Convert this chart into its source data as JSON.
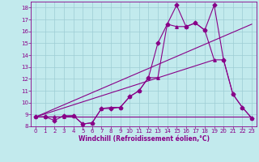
{
  "xlabel": "Windchill (Refroidissement éolien,°C)",
  "xlim": [
    -0.5,
    23.5
  ],
  "ylim": [
    8,
    18.5
  ],
  "xticks": [
    0,
    1,
    2,
    3,
    4,
    5,
    6,
    7,
    8,
    9,
    10,
    11,
    12,
    13,
    14,
    15,
    16,
    17,
    18,
    19,
    20,
    21,
    22,
    23
  ],
  "yticks": [
    8,
    9,
    10,
    11,
    12,
    13,
    14,
    15,
    16,
    17,
    18
  ],
  "background_color": "#c2eaed",
  "grid_color": "#9dcdd4",
  "line_color": "#880088",
  "line1_x": [
    0,
    1,
    2,
    3,
    4,
    5,
    6,
    7,
    8,
    9,
    10,
    11,
    12,
    13,
    14,
    15,
    16,
    17,
    18,
    19,
    20,
    21,
    22,
    23
  ],
  "line1_y": [
    8.8,
    8.8,
    8.5,
    8.9,
    8.9,
    8.2,
    8.3,
    9.5,
    9.5,
    9.6,
    10.5,
    11.0,
    12.1,
    15.0,
    16.6,
    18.2,
    16.4,
    16.7,
    16.1,
    18.2,
    13.6,
    10.7,
    9.6,
    8.7
  ],
  "line2_x": [
    0,
    23
  ],
  "line2_y": [
    8.8,
    8.8
  ],
  "line3_x": [
    0,
    1,
    2,
    3,
    4,
    5,
    6,
    7,
    8,
    9,
    10,
    11,
    12,
    13,
    14,
    15,
    16,
    17,
    18,
    19,
    20,
    21,
    22,
    23
  ],
  "line3_y": [
    8.8,
    8.8,
    8.8,
    8.8,
    8.9,
    8.2,
    8.3,
    9.5,
    9.6,
    9.6,
    10.5,
    11.0,
    12.1,
    12.1,
    16.6,
    16.4,
    16.4,
    16.7,
    16.1,
    13.6,
    13.6,
    10.7,
    9.6,
    8.7
  ],
  "line4_x": [
    0,
    19
  ],
  "line4_y": [
    8.8,
    13.6
  ],
  "line5_x": [
    0,
    23
  ],
  "line5_y": [
    8.8,
    16.6
  ]
}
